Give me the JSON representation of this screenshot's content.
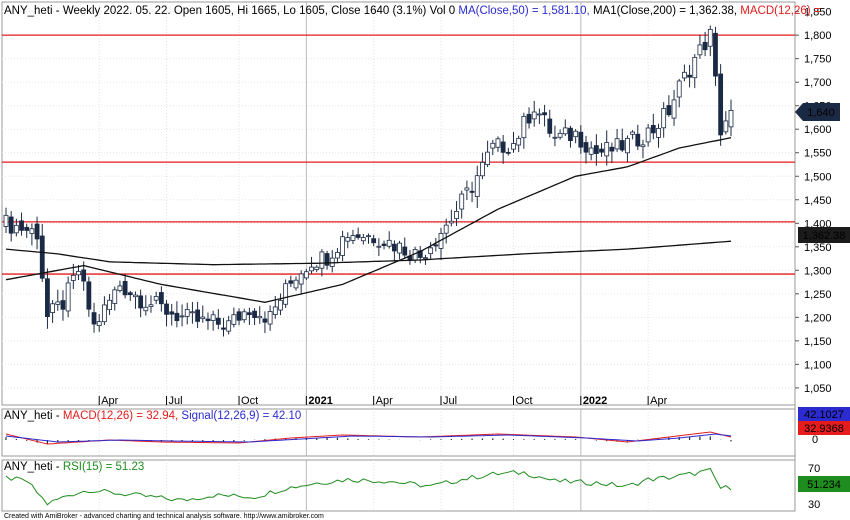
{
  "header": {
    "symbol": "ANY_heti",
    "ohlc": " - Weekly 2022. 05. 22. Open 1605, Hi 1665, Lo 1605, Close 1640 (3.1%) Vol 0",
    "ma_label": "MA(Close,50) = 1,581.10,",
    "ma1_label": "MA1(Close,200) = 1,362.38,",
    "macd_label": "MACD(12,26) ="
  },
  "macd_header": {
    "symbol": "ANY_heti - ",
    "macd": "MACD(12,26) = 32.94,",
    "signal": "Signal(12,26,9) = 42.10"
  },
  "rsi_header": {
    "symbol": "ANY_heti - ",
    "rsi": "RSI(15) = 51.23"
  },
  "badges": {
    "close": "1,640",
    "ma200": "1,362.38",
    "signal": "42.1027",
    "macd": "32.9368",
    "rsi": "51.234"
  },
  "footer": "Created with AmiBroker - advanced charting and technical analysis software. http://www.amibroker.com",
  "colors": {
    "up": "#ffffff",
    "down": "#1b2a44",
    "hline": "#e41c1c",
    "macd": "#e41c1c",
    "signal": "#2b2bd0",
    "rsi": "#1e8c1e"
  },
  "chart_data": [
    {
      "type": "candlestick",
      "title": "ANY_heti - Weekly",
      "x_ticks": [
        "Apr",
        "Jul",
        "Oct",
        "2021",
        "Apr",
        "Jul",
        "Oct",
        "2022",
        "Apr"
      ],
      "y_ticks": [
        "1,050",
        "1,100",
        "1,150",
        "1,200",
        "1,250",
        "1,300",
        "1,350",
        "1,400",
        "1,450",
        "1,500",
        "1,550",
        "1,600",
        "1,650",
        "1,700",
        "1,750",
        "1,800",
        "1,850"
      ],
      "ylim": [
        1020,
        1862
      ],
      "horizontal_levels": [
        1800,
        1530,
        1403,
        1292
      ],
      "ma_anchors_50": [
        [
          0,
          1280
        ],
        [
          15,
          1310
        ],
        [
          30,
          1270
        ],
        [
          50,
          1232
        ],
        [
          65,
          1270
        ],
        [
          80,
          1340
        ],
        [
          95,
          1430
        ],
        [
          110,
          1500
        ],
        [
          120,
          1520
        ],
        [
          130,
          1560
        ],
        [
          140,
          1582
        ]
      ],
      "ma_anchors_200": [
        [
          0,
          1345
        ],
        [
          10,
          1335
        ],
        [
          20,
          1318
        ],
        [
          40,
          1312
        ],
        [
          60,
          1315
        ],
        [
          80,
          1322
        ],
        [
          100,
          1335
        ],
        [
          120,
          1345
        ],
        [
          140,
          1362
        ]
      ],
      "close_anchors": [
        [
          0,
          1400
        ],
        [
          6,
          1380
        ],
        [
          8,
          1200
        ],
        [
          11,
          1230
        ],
        [
          14,
          1300
        ],
        [
          17,
          1180
        ],
        [
          22,
          1270
        ],
        [
          26,
          1240
        ],
        [
          34,
          1200
        ],
        [
          38,
          1190
        ],
        [
          43,
          1185
        ],
        [
          47,
          1220
        ],
        [
          51,
          1200
        ],
        [
          53,
          1240
        ],
        [
          56,
          1290
        ],
        [
          59,
          1320
        ],
        [
          62,
          1330
        ],
        [
          66,
          1380
        ],
        [
          72,
          1370
        ],
        [
          80,
          1330
        ],
        [
          86,
          1410
        ],
        [
          90,
          1480
        ],
        [
          94,
          1560
        ],
        [
          98,
          1570
        ],
        [
          102,
          1650
        ],
        [
          106,
          1580
        ],
        [
          110,
          1590
        ],
        [
          114,
          1550
        ],
        [
          118,
          1560
        ],
        [
          122,
          1580
        ],
        [
          125,
          1600
        ],
        [
          128,
          1640
        ],
        [
          130,
          1690
        ],
        [
          133,
          1750
        ],
        [
          136,
          1800
        ],
        [
          138,
          1600
        ],
        [
          140,
          1640
        ]
      ]
    },
    {
      "type": "line",
      "title": "MACD(12,26)",
      "series": [
        {
          "name": "MACD(12,26)",
          "last": 32.94
        },
        {
          "name": "Signal(12,26,9)",
          "last": 42.1
        }
      ],
      "y_ticks": [
        "0"
      ]
    },
    {
      "type": "line",
      "title": "RSI(15)",
      "series": [
        {
          "name": "RSI(15)",
          "last": 51.23
        }
      ],
      "y_ticks": [
        "70",
        "50",
        "30"
      ],
      "ylim": [
        25,
        80
      ]
    }
  ]
}
